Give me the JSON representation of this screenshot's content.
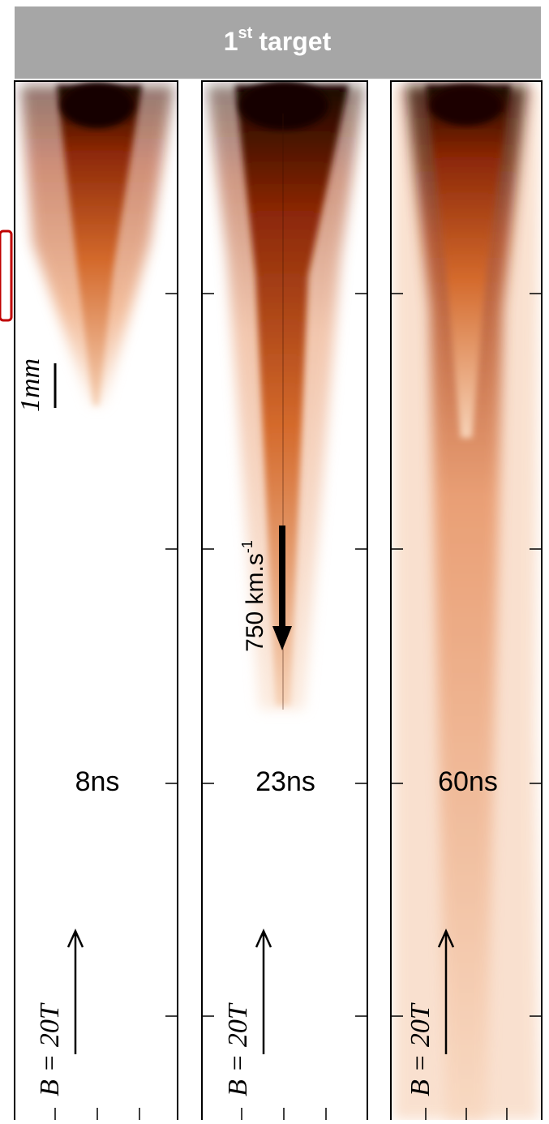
{
  "header": {
    "title": {
      "base": "1",
      "sup": "st",
      "rest": "target"
    }
  },
  "panels": [
    {
      "time": "8ns",
      "field": "B = 20T",
      "scale": "1mm"
    },
    {
      "time": "23ns",
      "field": "B = 20T",
      "velocity": {
        "base": "750 km.s",
        "sup": "-1"
      }
    },
    {
      "time": "60ns",
      "field": "B = 20T"
    }
  ]
}
